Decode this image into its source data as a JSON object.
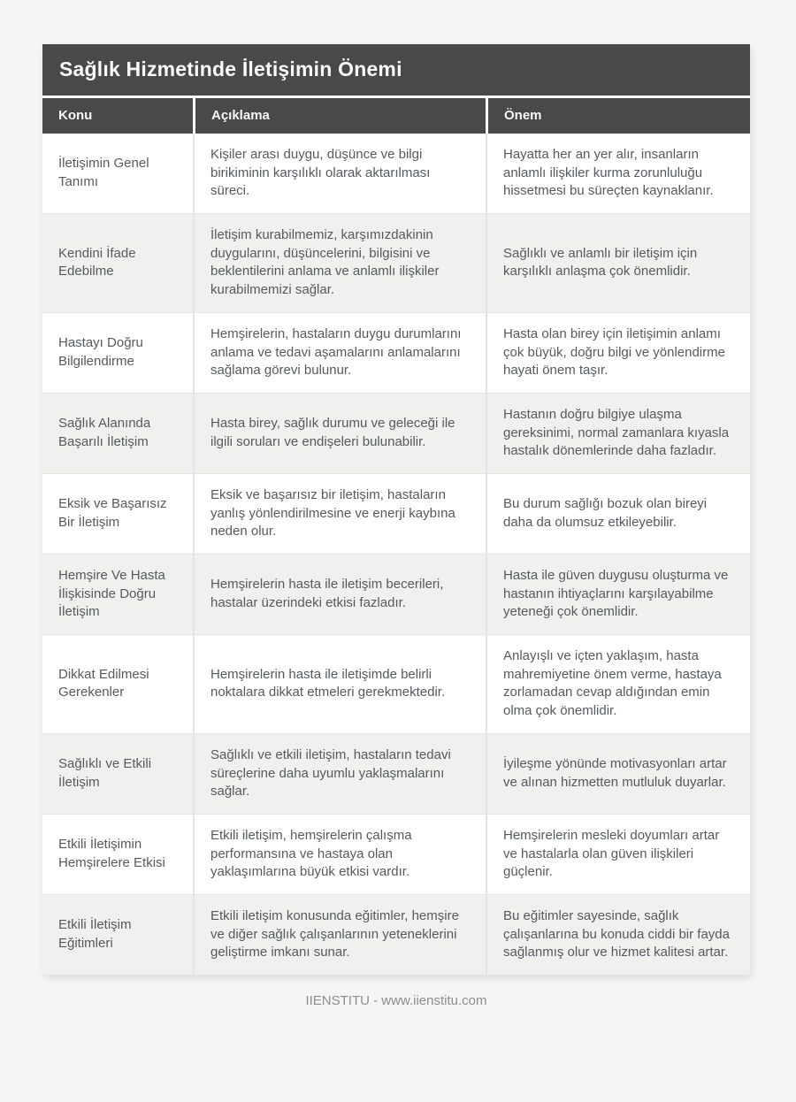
{
  "theme": {
    "page-bg": "#f5f5f4",
    "header-bg": "#494949",
    "header-text": "#f7f7f7",
    "row-odd": "#ffffff",
    "row-even": "#f0f0ef",
    "cell-border": "#e4e4e2",
    "body-text": "#565a5e",
    "footer-text": "#8d8d8d"
  },
  "table": {
    "title": "Sağlık Hizmetinde İletişimin Önemi",
    "columns": [
      "Konu",
      "Açıklama",
      "Önem"
    ],
    "rows": [
      {
        "konu": "İletişimin Genel Tanımı",
        "aciklama": "Kişiler arası duygu, düşünce ve bilgi birikiminin karşılıklı olarak aktarılması süreci.",
        "onem": "Hayatta her an yer alır, insanların anlamlı ilişkiler kurma zorunluluğu hissetmesi bu süreçten kaynaklanır."
      },
      {
        "konu": "Kendini İfade Edebilme",
        "aciklama": "İletişim kurabilmemiz, karşımızdakinin duygularını, düşüncelerini, bilgisini ve beklentilerini anlama ve anlamlı ilişkiler kurabilmemizi sağlar.",
        "onem": "Sağlıklı ve anlamlı bir iletişim için karşılıklı anlaşma çok önemlidir."
      },
      {
        "konu": "Hastayı Doğru Bilgilendirme",
        "aciklama": "Hemşirelerin, hastaların duygu durumlarını anlama ve tedavi aşamalarını anlamalarını sağlama görevi bulunur.",
        "onem": "Hasta olan birey için iletişimin anlamı çok büyük, doğru bilgi ve yönlendirme hayati önem taşır."
      },
      {
        "konu": "Sağlık Alanında Başarılı İletişim",
        "aciklama": "Hasta birey, sağlık durumu ve geleceği ile ilgili soruları ve endişeleri bulunabilir.",
        "onem": "Hastanın doğru bilgiye ulaşma gereksinimi, normal zamanlara kıyasla hastalık dönemlerinde daha fazladır."
      },
      {
        "konu": "Eksik ve Başarısız Bir İletişim",
        "aciklama": "Eksik ve başarısız bir iletişim, hastaların yanlış yönlendirilmesine ve enerji kaybına neden olur.",
        "onem": "Bu durum sağlığı bozuk olan bireyi daha da olumsuz etkileyebilir."
      },
      {
        "konu": "Hemşire Ve Hasta İlişkisinde Doğru İletişim",
        "aciklama": "Hemşirelerin hasta ile iletişim becerileri, hastalar üzerindeki etkisi fazladır.",
        "onem": "Hasta ile güven duygusu oluşturma ve hastanın ihtiyaçlarını karşılayabilme yeteneği çok önemlidir."
      },
      {
        "konu": "Dikkat Edilmesi Gerekenler",
        "aciklama": "Hemşirelerin hasta ile iletişimde belirli noktalara dikkat etmeleri gerekmektedir.",
        "onem": "Anlayışlı ve içten yaklaşım, hasta mahremiyetine önem verme, hastaya zorlamadan cevap aldığından emin olma çok önemlidir."
      },
      {
        "konu": "Sağlıklı ve Etkili İletişim",
        "aciklama": "Sağlıklı ve etkili iletişim, hastaların tedavi süreçlerine daha uyumlu yaklaşmalarını sağlar.",
        "onem": "İyileşme yönünde motivasyonları artar ve alınan hizmetten mutluluk duyarlar."
      },
      {
        "konu": "Etkili İletişimin Hemşirelere Etkisi",
        "aciklama": "Etkili iletişim, hemşirelerin çalışma performansına ve hastaya olan yaklaşımlarına büyük etkisi vardır.",
        "onem": "Hemşirelerin mesleki doyumları artar ve hastalarla olan güven ilişkileri güçlenir."
      },
      {
        "konu": "Etkili İletişim Eğitimleri",
        "aciklama": "Etkili iletişim konusunda eğitimler, hemşire ve diğer sağlık çalışanlarının yeteneklerini geliştirme imkanı sunar.",
        "onem": "Bu eğitimler sayesinde, sağlık çalışanlarına bu konuda ciddi bir fayda sağlanmış olur ve hizmet kalitesi artar."
      }
    ]
  },
  "footer": {
    "text": "IIENSTITU - www.iienstitu.com"
  }
}
